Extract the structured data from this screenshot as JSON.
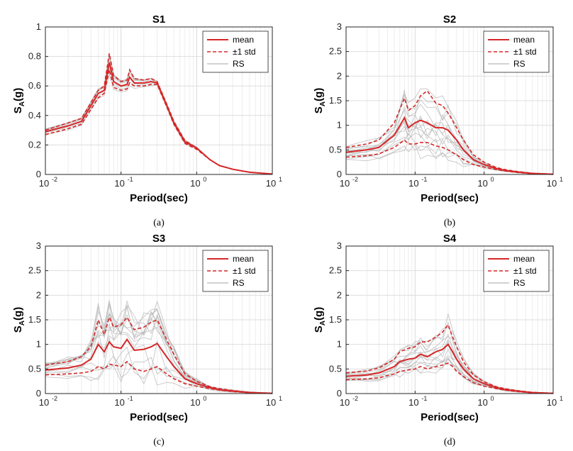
{
  "chart_data": [
    {
      "panel": "(a)",
      "type": "line",
      "title": "S1",
      "xlabel": "Period(sec)",
      "ylabel": "S_A(g)",
      "xscale": "log",
      "xlim": [
        0.01,
        10
      ],
      "ylim": [
        0,
        1
      ],
      "yticks": [
        0,
        0.2,
        0.4,
        0.6,
        0.8,
        1
      ],
      "yticklabels": [
        "0",
        "0.2",
        "0.4",
        "0.6",
        "0.8",
        "1"
      ],
      "legend": [
        "mean",
        "±1 std",
        "RS"
      ],
      "legend_position": "top-right",
      "colors": {
        "mean": "#d62728",
        "std": "#d62728",
        "rs": "#b8b8b8"
      },
      "period": [
        0.01,
        0.02,
        0.03,
        0.05,
        0.06,
        0.07,
        0.08,
        0.1,
        0.12,
        0.13,
        0.15,
        0.2,
        0.25,
        0.3,
        0.4,
        0.5,
        0.7,
        1.0,
        1.5,
        2.0,
        3.0,
        5.0,
        10.0
      ],
      "mean": [
        0.29,
        0.33,
        0.36,
        0.55,
        0.57,
        0.76,
        0.63,
        0.6,
        0.61,
        0.66,
        0.62,
        0.62,
        0.63,
        0.62,
        0.47,
        0.35,
        0.22,
        0.18,
        0.1,
        0.06,
        0.035,
        0.015,
        0.003
      ],
      "std_upper": [
        0.3,
        0.35,
        0.38,
        0.57,
        0.6,
        0.82,
        0.67,
        0.63,
        0.64,
        0.71,
        0.65,
        0.64,
        0.65,
        0.63,
        0.48,
        0.36,
        0.23,
        0.18,
        0.1,
        0.06,
        0.035,
        0.015,
        0.003
      ],
      "std_lower": [
        0.27,
        0.31,
        0.34,
        0.52,
        0.55,
        0.71,
        0.59,
        0.57,
        0.58,
        0.62,
        0.6,
        0.6,
        0.61,
        0.61,
        0.46,
        0.34,
        0.21,
        0.17,
        0.1,
        0.06,
        0.035,
        0.015,
        0.003
      ],
      "rs_spread": 0.08,
      "rs_count": 8
    },
    {
      "panel": "(b)",
      "type": "line",
      "title": "S2",
      "xlabel": "Period(sec)",
      "ylabel": "S_A(g)",
      "xscale": "log",
      "xlim": [
        0.01,
        10
      ],
      "ylim": [
        0,
        3
      ],
      "yticks": [
        0,
        0.5,
        1,
        1.5,
        2,
        2.5,
        3
      ],
      "yticklabels": [
        "0",
        "0.5",
        "1",
        "1.5",
        "2",
        "2.5",
        "3"
      ],
      "legend": [
        "mean",
        "±1 std",
        "RS"
      ],
      "legend_position": "top-right",
      "colors": {
        "mean": "#d62728",
        "std": "#d62728",
        "rs": "#b8b8b8"
      },
      "period": [
        0.01,
        0.02,
        0.03,
        0.05,
        0.07,
        0.08,
        0.1,
        0.12,
        0.15,
        0.2,
        0.25,
        0.3,
        0.4,
        0.5,
        0.7,
        1.0,
        1.5,
        2.0,
        3.0,
        5.0,
        10.0
      ],
      "mean": [
        0.45,
        0.5,
        0.55,
        0.8,
        1.15,
        0.95,
        1.05,
        1.1,
        1.05,
        0.95,
        0.95,
        0.9,
        0.7,
        0.5,
        0.3,
        0.2,
        0.12,
        0.08,
        0.05,
        0.02,
        0.005
      ],
      "std_upper": [
        0.55,
        0.62,
        0.7,
        1.05,
        1.55,
        1.3,
        1.4,
        1.6,
        1.7,
        1.45,
        1.4,
        1.25,
        0.95,
        0.7,
        0.4,
        0.25,
        0.14,
        0.1,
        0.06,
        0.025,
        0.006
      ],
      "std_lower": [
        0.35,
        0.38,
        0.42,
        0.55,
        0.7,
        0.62,
        0.62,
        0.65,
        0.65,
        0.58,
        0.55,
        0.5,
        0.4,
        0.3,
        0.2,
        0.15,
        0.1,
        0.07,
        0.04,
        0.015,
        0.004
      ],
      "rs_spread": 0.6,
      "rs_count": 14
    },
    {
      "panel": "(c)",
      "type": "line",
      "title": "S3",
      "xlabel": "Period(sec)",
      "ylabel": "S_A(g)",
      "xscale": "log",
      "xlim": [
        0.01,
        10
      ],
      "ylim": [
        0,
        3
      ],
      "yticks": [
        0,
        0.5,
        1,
        1.5,
        2,
        2.5,
        3
      ],
      "yticklabels": [
        "0",
        "0.5",
        "1",
        "1.5",
        "2",
        "2.5",
        "3"
      ],
      "legend": [
        "mean",
        "±1 std",
        "RS"
      ],
      "legend_position": "top-right",
      "colors": {
        "mean": "#d62728",
        "std": "#d62728",
        "rs": "#b8b8b8"
      },
      "period": [
        0.01,
        0.02,
        0.03,
        0.04,
        0.05,
        0.06,
        0.07,
        0.08,
        0.1,
        0.12,
        0.15,
        0.2,
        0.25,
        0.3,
        0.4,
        0.5,
        0.7,
        1.0,
        1.5,
        2.0,
        3.0,
        5.0,
        10.0
      ],
      "mean": [
        0.48,
        0.52,
        0.58,
        0.7,
        1.0,
        0.85,
        1.05,
        0.95,
        0.92,
        1.1,
        0.88,
        0.9,
        0.95,
        1.02,
        0.75,
        0.55,
        0.3,
        0.2,
        0.12,
        0.08,
        0.05,
        0.02,
        0.005
      ],
      "std_upper": [
        0.58,
        0.65,
        0.75,
        0.95,
        1.5,
        1.2,
        1.55,
        1.35,
        1.4,
        1.55,
        1.3,
        1.35,
        1.45,
        1.5,
        1.1,
        0.8,
        0.4,
        0.25,
        0.14,
        0.1,
        0.06,
        0.025,
        0.006
      ],
      "std_lower": [
        0.38,
        0.4,
        0.42,
        0.45,
        0.55,
        0.5,
        0.6,
        0.58,
        0.55,
        0.65,
        0.5,
        0.45,
        0.5,
        0.55,
        0.4,
        0.3,
        0.2,
        0.15,
        0.1,
        0.07,
        0.04,
        0.015,
        0.004
      ],
      "rs_spread": 0.7,
      "rs_count": 14
    },
    {
      "panel": "(d)",
      "type": "line",
      "title": "S4",
      "xlabel": "Period(sec)",
      "ylabel": "S_A(g)",
      "xscale": "log",
      "xlim": [
        0.01,
        10
      ],
      "ylim": [
        0,
        3
      ],
      "yticks": [
        0,
        0.5,
        1,
        1.5,
        2,
        2.5,
        3
      ],
      "yticklabels": [
        "0",
        "0.5",
        "1",
        "1.5",
        "2",
        "2.5",
        "3"
      ],
      "legend": [
        "mean",
        "±1 std",
        "RS"
      ],
      "legend_position": "top-right",
      "colors": {
        "mean": "#d62728",
        "std": "#d62728",
        "rs": "#b8b8b8"
      },
      "period": [
        0.01,
        0.02,
        0.03,
        0.05,
        0.06,
        0.08,
        0.1,
        0.12,
        0.15,
        0.2,
        0.25,
        0.3,
        0.35,
        0.4,
        0.5,
        0.7,
        1.0,
        1.5,
        2.0,
        3.0,
        5.0,
        10.0
      ],
      "mean": [
        0.35,
        0.38,
        0.42,
        0.55,
        0.65,
        0.7,
        0.72,
        0.8,
        0.75,
        0.85,
        0.9,
        1.0,
        0.85,
        0.7,
        0.5,
        0.3,
        0.2,
        0.12,
        0.08,
        0.05,
        0.02,
        0.005
      ],
      "std_upper": [
        0.42,
        0.46,
        0.52,
        0.7,
        0.85,
        0.92,
        0.95,
        1.05,
        1.05,
        1.15,
        1.25,
        1.4,
        1.15,
        0.95,
        0.65,
        0.38,
        0.24,
        0.14,
        0.1,
        0.06,
        0.025,
        0.006
      ],
      "std_lower": [
        0.28,
        0.3,
        0.32,
        0.4,
        0.45,
        0.48,
        0.5,
        0.55,
        0.5,
        0.55,
        0.58,
        0.62,
        0.55,
        0.45,
        0.35,
        0.22,
        0.15,
        0.1,
        0.07,
        0.04,
        0.015,
        0.004
      ],
      "rs_spread": 0.5,
      "rs_count": 14
    }
  ]
}
